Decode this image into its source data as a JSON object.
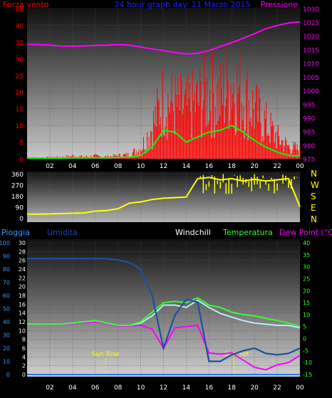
{
  "colors": {
    "wind": "#ff0000",
    "gust_avg": "#00ff00",
    "pressure": "#ff00ff",
    "direction": "#ffff00",
    "rain_axis": "#3399ff",
    "humidity": "#1f4fa0",
    "windchill": "#ffffff",
    "temperature": "#33ff33",
    "dewpoint": "#ff00ff",
    "rain": "#1e7fff",
    "text_blue": "#2222ff",
    "compass": "#ffff00",
    "sun": "#ffff00"
  },
  "chart_data": [
    {
      "type": "line",
      "title": "24 hour graph day: 11 Marzo 2015",
      "left_axis_label": "Forza vento",
      "right_axis_label": "Pressione",
      "ylim_left": [
        0,
        45
      ],
      "ylim_right": [
        975,
        1030
      ],
      "yticks_left": [
        "0",
        "5",
        "10",
        "15",
        "20",
        "25",
        "30",
        "35",
        "40",
        "45"
      ],
      "yticks_right": [
        "975",
        "980",
        "985",
        "990",
        "995",
        "1000",
        "1005",
        "1010",
        "1015",
        "1020",
        "1025",
        "1030"
      ],
      "x_hours": [
        0,
        1,
        2,
        3,
        4,
        5,
        6,
        7,
        8,
        9,
        10,
        11,
        12,
        13,
        14,
        15,
        16,
        17,
        18,
        19,
        20,
        21,
        22,
        23,
        24
      ],
      "x_tick_labels": [
        "02",
        "04",
        "06",
        "08",
        "10",
        "12",
        "14",
        "16",
        "18",
        "20",
        "22",
        "00"
      ],
      "series": [
        {
          "key": "pressure",
          "values": [
            1016.9,
            1016.8,
            1016.6,
            1016.3,
            1016.2,
            1016.3,
            1016.5,
            1016.6,
            1016.8,
            1016.6,
            1015.9,
            1015.2,
            1014.6,
            1013.9,
            1013.4,
            1013.6,
            1014.6,
            1016.1,
            1017.5,
            1019.1,
            1020.8,
            1022.6,
            1023.8,
            1024.7,
            1025.1
          ]
        },
        {
          "key": "wind",
          "values": [
            0.4,
            0.3,
            0.4,
            0.5,
            0.8,
            0.6,
            0.8,
            0.6,
            0.9,
            1.2,
            3.0,
            9.0,
            17.0,
            15.0,
            14.0,
            16.0,
            19.0,
            17.0,
            22.0,
            18.0,
            14.0,
            10.0,
            6.0,
            3.5,
            2.5
          ]
        },
        {
          "key": "gust_avg",
          "values": [
            0.2,
            0.2,
            0.2,
            0.2,
            0.3,
            0.3,
            0.3,
            0.3,
            0.4,
            0.5,
            1.0,
            3.5,
            8.5,
            8.0,
            5.0,
            6.5,
            8.0,
            8.5,
            10.0,
            8.0,
            5.5,
            3.5,
            2.0,
            1.0,
            0.8
          ]
        }
      ]
    },
    {
      "type": "line",
      "compass": [
        "N",
        "W",
        "S",
        "E",
        "N"
      ],
      "ylim": [
        0,
        360
      ],
      "yticks": [
        "0",
        "90",
        "180",
        "270",
        "360"
      ],
      "x_hours": [
        0,
        1,
        2,
        3,
        4,
        5,
        6,
        7,
        8,
        9,
        10,
        11,
        12,
        13,
        14,
        15,
        16,
        17,
        18,
        19,
        20,
        21,
        22,
        23,
        24
      ],
      "series": [
        {
          "key": "direction",
          "values": [
            30,
            30,
            32,
            35,
            38,
            40,
            55,
            60,
            75,
            120,
            130,
            150,
            160,
            165,
            170,
            320,
            330,
            310,
            320,
            300,
            315,
            300,
            310,
            320,
            90
          ]
        }
      ]
    },
    {
      "type": "line",
      "labels": {
        "rain": "Pioggia",
        "humidity": "Umidita",
        "windchill": "Windchill",
        "temperature": "Temperatura",
        "dewpoint": "Dew Point (°C)"
      },
      "ylim_rain": [
        0,
        30
      ],
      "ylim_humidity": [
        0,
        100
      ],
      "ylim_temp": [
        -15,
        40
      ],
      "yticks_rain": [
        "0",
        "2",
        "4",
        "6",
        "8",
        "10",
        "12",
        "14",
        "16",
        "18",
        "20",
        "22",
        "24",
        "26",
        "28",
        "30"
      ],
      "yticks_humidity": [
        "0",
        "10",
        "20",
        "30",
        "40",
        "50",
        "60",
        "70",
        "80",
        "90",
        "100"
      ],
      "yticks_temp": [
        "-15",
        "-10",
        "-5",
        "0",
        "5",
        "10",
        "15",
        "20",
        "25",
        "30",
        "35",
        "40"
      ],
      "annotations": [
        "Sun Rise",
        "Sun Set"
      ],
      "sunrise_hour": 6.9,
      "sunset_hour": 18.2,
      "x_hours": [
        0,
        1,
        2,
        3,
        4,
        5,
        6,
        7,
        8,
        9,
        10,
        11,
        12,
        13,
        14,
        15,
        16,
        17,
        18,
        19,
        20,
        21,
        22,
        23,
        24
      ],
      "series": [
        {
          "key": "humidity",
          "values": [
            88,
            88,
            88,
            88,
            88,
            88,
            88,
            88,
            87,
            85,
            80,
            60,
            20,
            45,
            57,
            55,
            10,
            10,
            15,
            18,
            20,
            16,
            15,
            16,
            20
          ]
        },
        {
          "key": "temperature",
          "values": [
            6,
            6,
            6,
            6,
            6.5,
            7,
            7.5,
            6.5,
            5.5,
            5.5,
            7,
            11,
            15,
            15.5,
            15,
            17,
            14,
            13,
            11,
            10,
            9.5,
            8.5,
            7.5,
            6.5,
            5
          ]
        },
        {
          "key": "windchill",
          "values": [
            6,
            6,
            6,
            6,
            6.5,
            7,
            7.5,
            6.5,
            5.5,
            5.5,
            6.5,
            9.5,
            14,
            14,
            13,
            16,
            13,
            10.5,
            9,
            7.5,
            6.5,
            6,
            5.5,
            5.5,
            4.5
          ]
        },
        {
          "key": "dewpoint",
          "values": [
            5.8,
            5.8,
            5.8,
            5.8,
            6.2,
            6.6,
            7,
            6.2,
            5.3,
            5.3,
            5.5,
            4,
            -4,
            4.5,
            5,
            5.5,
            -6,
            -6.5,
            -6,
            -9,
            -12,
            -13,
            -11,
            -10,
            -7
          ]
        },
        {
          "key": "rain",
          "values": [
            0,
            0,
            0,
            0,
            0,
            0,
            0,
            0,
            0,
            0,
            0,
            0,
            0,
            0,
            0,
            0,
            0,
            0,
            0,
            0,
            0,
            0,
            0,
            0,
            0
          ]
        }
      ]
    }
  ]
}
